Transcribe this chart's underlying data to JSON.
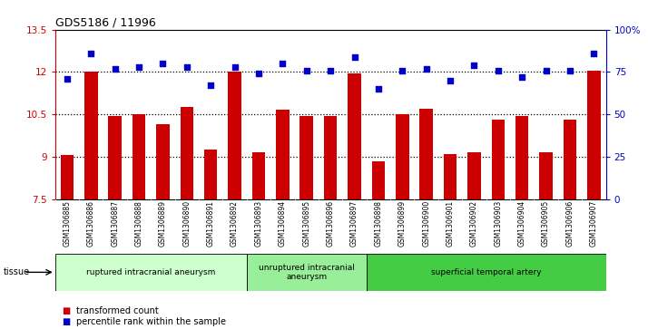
{
  "title": "GDS5186 / 11996",
  "samples": [
    "GSM1306885",
    "GSM1306886",
    "GSM1306887",
    "GSM1306888",
    "GSM1306889",
    "GSM1306890",
    "GSM1306891",
    "GSM1306892",
    "GSM1306893",
    "GSM1306894",
    "GSM1306895",
    "GSM1306896",
    "GSM1306897",
    "GSM1306898",
    "GSM1306899",
    "GSM1306900",
    "GSM1306901",
    "GSM1306902",
    "GSM1306903",
    "GSM1306904",
    "GSM1306905",
    "GSM1306906",
    "GSM1306907"
  ],
  "bar_values": [
    9.05,
    12.0,
    10.45,
    10.5,
    10.15,
    10.75,
    9.25,
    12.0,
    9.15,
    10.65,
    10.45,
    10.45,
    11.95,
    8.85,
    10.5,
    10.7,
    9.1,
    9.15,
    10.3,
    10.45,
    9.15,
    10.3,
    12.05
  ],
  "dot_values": [
    71,
    86,
    77,
    78,
    80,
    78,
    67,
    78,
    74,
    80,
    76,
    76,
    84,
    65,
    76,
    77,
    70,
    79,
    76,
    72,
    76,
    76,
    86
  ],
  "ymin": 7.5,
  "ymax": 13.5,
  "yticks": [
    7.5,
    9.0,
    10.5,
    12.0,
    13.5
  ],
  "ytick_labels": [
    "7.5",
    "9",
    "10.5",
    "12",
    "13.5"
  ],
  "y2min": 0,
  "y2max": 100,
  "y2ticks": [
    0,
    25,
    50,
    75,
    100
  ],
  "y2tick_labels": [
    "0",
    "25",
    "50",
    "75",
    "100%"
  ],
  "bar_color": "#CC0000",
  "dot_color": "#0000CC",
  "groups": [
    {
      "label": "ruptured intracranial aneurysm",
      "start": 0,
      "end": 8
    },
    {
      "label": "unruptured intracranial\naneurysm",
      "start": 8,
      "end": 13
    },
    {
      "label": "superficial temporal artery",
      "start": 13,
      "end": 23
    }
  ],
  "group_colors": [
    "#CCFFCC",
    "#99EE99",
    "#44CC44"
  ],
  "legend_bar_label": "transformed count",
  "legend_dot_label": "percentile rank within the sample",
  "tissue_label": "tissue",
  "label_bg_color": "#CCCCCC",
  "plot_bg_color": "#FFFFFF",
  "axis_color_left": "#CC0000",
  "axis_color_right": "#0000CC",
  "dotted_lines": [
    9.0,
    10.5,
    12.0
  ]
}
